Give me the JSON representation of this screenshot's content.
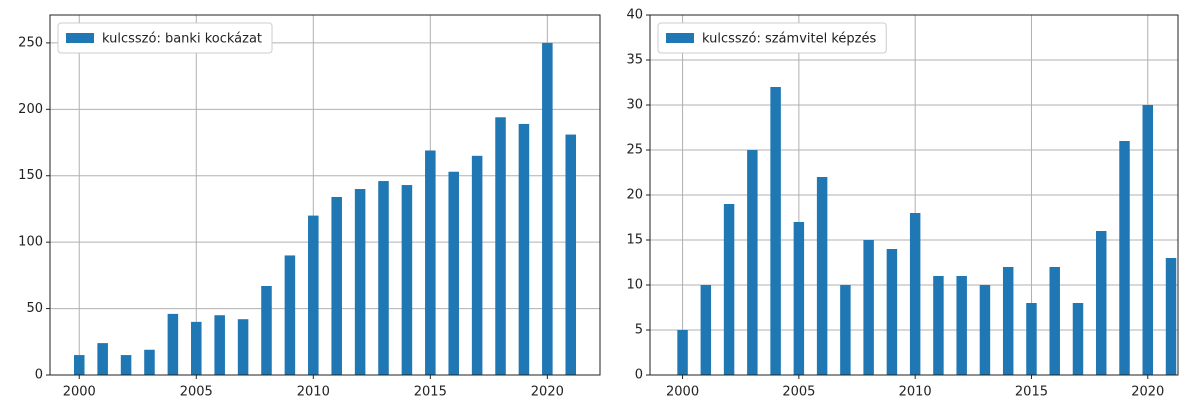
{
  "chart_data": [
    {
      "type": "bar",
      "x": [
        2000,
        2001,
        2002,
        2003,
        2004,
        2005,
        2006,
        2007,
        2008,
        2009,
        2010,
        2011,
        2012,
        2013,
        2014,
        2015,
        2016,
        2017,
        2018,
        2019,
        2020,
        2021
      ],
      "series": [
        {
          "name": "kulcsszó: banki kockázat",
          "color": "#1f77b4",
          "values": [
            15,
            24,
            15,
            19,
            46,
            40,
            45,
            42,
            67,
            90,
            120,
            134,
            140,
            146,
            143,
            169,
            153,
            165,
            194,
            189,
            250,
            181
          ]
        }
      ],
      "xlim": [
        1998.75,
        2022.25
      ],
      "xticks": [
        2000,
        2005,
        2010,
        2015,
        2020
      ],
      "ylim": [
        0,
        271
      ],
      "yticks": [
        0,
        50,
        100,
        150,
        200,
        250
      ],
      "grid": true,
      "legend": "upper left"
    },
    {
      "type": "bar",
      "x": [
        2000,
        2001,
        2002,
        2003,
        2004,
        2005,
        2006,
        2007,
        2008,
        2009,
        2010,
        2011,
        2012,
        2013,
        2014,
        2015,
        2016,
        2017,
        2018,
        2019,
        2020,
        2021
      ],
      "series": [
        {
          "name": "kulcsszó: számvitel képzés",
          "color": "#1f77b4",
          "values": [
            5,
            10,
            19,
            25,
            32,
            17,
            22,
            10,
            15,
            14,
            18,
            11,
            11,
            10,
            12,
            8,
            12,
            8,
            16,
            26,
            30,
            13
          ]
        }
      ],
      "xlim": [
        1998.6,
        2021.3
      ],
      "xticks": [
        2000,
        2005,
        2010,
        2015,
        2020
      ],
      "ylim": [
        0,
        40
      ],
      "yticks": [
        0,
        5,
        10,
        15,
        20,
        25,
        30,
        35,
        40
      ],
      "grid": true,
      "legend": "upper left"
    }
  ]
}
